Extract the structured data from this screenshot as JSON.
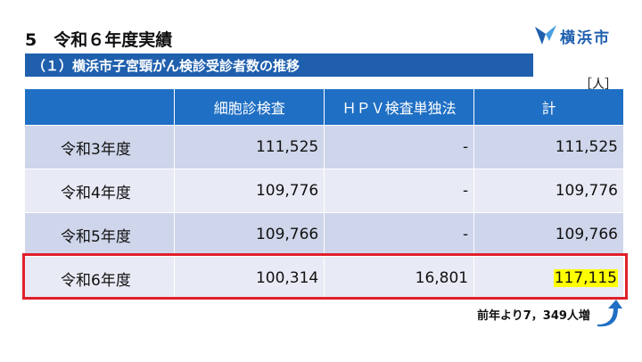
{
  "header": {
    "title": "5　令和６年度実績",
    "subtitle": "（１）横浜市子宮頸がん検診受診者数の推移",
    "logo": "横浜市",
    "unit": "［人］"
  },
  "table": {
    "columns": [
      "細胞診検査",
      "ＨＰＶ検査単独法",
      "計"
    ],
    "rows": [
      [
        "令和3年度",
        "111,525",
        "-",
        "111,525"
      ],
      [
        "令和4年度",
        "109,776",
        "-",
        "109,776"
      ],
      [
        "令和5年度",
        "109,766",
        "-",
        "109,766"
      ],
      [
        "令和6年度",
        "100,314",
        "16,801",
        "117,115"
      ]
    ]
  },
  "note": "前年より7，349人増"
}
